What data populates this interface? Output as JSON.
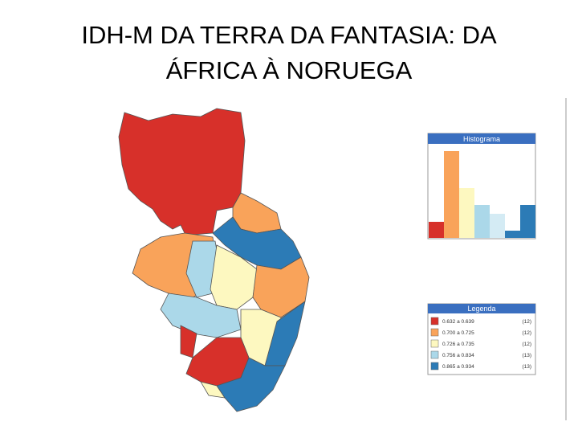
{
  "title": "IDH-M DA TERRA DA FANTASIA:  DA ÁFRICA À NORUEGA",
  "histogram": {
    "title": "Histograma"
  },
  "legend": {
    "title": "Legenda",
    "items": [
      {
        "label": "0.632 a 0.639",
        "count": "(12)",
        "color": "#d7302a"
      },
      {
        "label": "0.700 a 0.725",
        "count": "(12)",
        "color": "#f9a35a"
      },
      {
        "label": "0.726 a 0.735",
        "count": "(12)",
        "color": "#fdf8c0"
      },
      {
        "label": "0.756 a 0.834",
        "count": "(13)",
        "color": "#abd8e9"
      },
      {
        "label": "0.865 a 0.934",
        "count": "(13)",
        "color": "#2c7bb6"
      }
    ]
  }
}
